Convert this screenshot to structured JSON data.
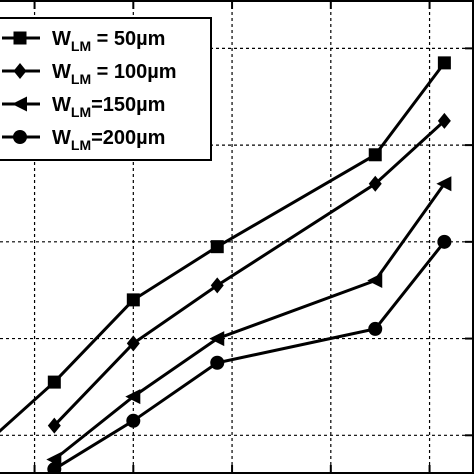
{
  "chart_data": {
    "type": "line",
    "title": "",
    "xlabel": "",
    "ylabel": "",
    "grid": true,
    "legend_position": "top-left",
    "x_grid_values": [
      1,
      2,
      3,
      4,
      5
    ],
    "y_grid_values": [
      1,
      2,
      3,
      4,
      5
    ],
    "xlim": [
      0.65,
      5.45
    ],
    "ylim": [
      0.6,
      5.5
    ],
    "series": [
      {
        "name": "W_LM = 50µm",
        "legend": {
          "main": "W",
          "sub": "LM",
          "rest": " = 50µm"
        },
        "marker": "square",
        "x": [
          0.6,
          1.2,
          2.0,
          2.85,
          4.45,
          5.15
        ],
        "y": [
          1.0,
          1.55,
          2.4,
          2.95,
          3.9,
          4.85
        ]
      },
      {
        "name": "W_LM = 100µm",
        "legend": {
          "main": "W",
          "sub": "LM",
          "rest": " = 100µm"
        },
        "marker": "diamond",
        "x": [
          1.2,
          2.0,
          2.85,
          4.45,
          5.15
        ],
        "y": [
          1.1,
          1.95,
          2.55,
          3.6,
          4.25
        ]
      },
      {
        "name": "W_LM=150µm",
        "legend": {
          "main": "W",
          "sub": "LM",
          "rest": "=150µm"
        },
        "marker": "triangle-left",
        "x": [
          1.2,
          2.0,
          2.85,
          4.45,
          5.15
        ],
        "y": [
          0.75,
          1.4,
          2.0,
          2.6,
          3.6
        ]
      },
      {
        "name": "W_LM=200µm",
        "legend": {
          "main": "W",
          "sub": "LM",
          "rest": "=200µm"
        },
        "marker": "circle",
        "x": [
          1.2,
          2.0,
          2.85,
          4.45,
          5.15
        ],
        "y": [
          0.65,
          1.15,
          1.75,
          2.1,
          3.0
        ]
      }
    ]
  }
}
